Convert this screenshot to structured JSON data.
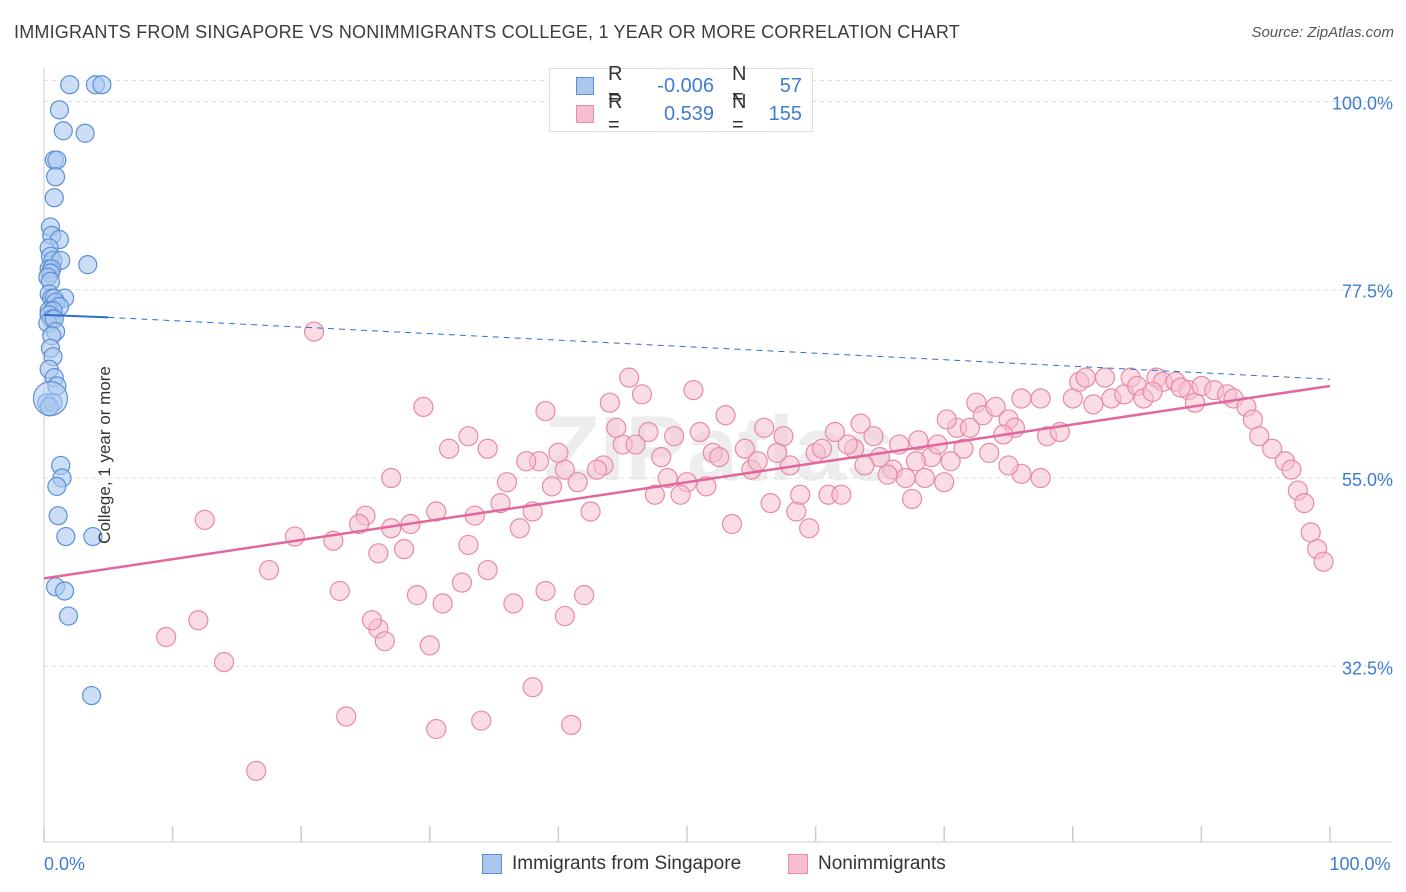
{
  "header": {
    "title": "IMMIGRANTS FROM SINGAPORE VS NONIMMIGRANTS COLLEGE, 1 YEAR OR MORE CORRELATION CHART",
    "source": "Source: ZipAtlas.com"
  },
  "legend": {
    "rows": [
      {
        "r_label": "R =",
        "r_value": "-0.006",
        "n_label": "N =",
        "n_value": "57"
      },
      {
        "r_label": "R =",
        "r_value": "0.539",
        "n_label": "N =",
        "n_value": "155"
      }
    ]
  },
  "bottom_legend": {
    "items": [
      {
        "label": "Immigrants from Singapore"
      },
      {
        "label": "Nonimmigrants"
      }
    ]
  },
  "watermark": "ZIPatlas",
  "colors": {
    "blue_fill": "#aac8ee",
    "blue_stroke": "#5b8fd6",
    "blue_line": "#2f6fcf",
    "pink_fill": "#f6bfd0",
    "pink_stroke": "#e88aa8",
    "pink_line": "#e0689a",
    "tick_label": "#3f7dd1",
    "grid": "#dddddd"
  },
  "chart_data": {
    "type": "scatter",
    "title": "IMMIGRANTS FROM SINGAPORE VS NONIMMIGRANTS COLLEGE, 1 YEAR OR MORE CORRELATION CHART",
    "xlabel": "",
    "ylabel": "College, 1 year or more",
    "xlim": [
      0,
      100
    ],
    "ylim": [
      11.5,
      104
    ],
    "x_tick_labels": [
      {
        "value": 0,
        "label": "0.0%"
      },
      {
        "value": 100,
        "label": "100.0%"
      }
    ],
    "y_ticks": [
      {
        "value": 100,
        "label": "100.0%"
      },
      {
        "value": 77.5,
        "label": "77.5%"
      },
      {
        "value": 55,
        "label": "55.0%"
      },
      {
        "value": 32.5,
        "label": "32.5%"
      }
    ],
    "series": [
      {
        "name": "Immigrants from Singapore",
        "r": -0.006,
        "n": 57,
        "trend": {
          "x0": 0,
          "y0": 74.5,
          "x1": 5,
          "y1": 74.2,
          "dash_x1": 100,
          "dash_y1": 66.8
        },
        "points": [
          [
            2.0,
            102.0
          ],
          [
            4.0,
            102.0
          ],
          [
            4.5,
            102.0
          ],
          [
            1.2,
            99.0
          ],
          [
            1.5,
            96.5
          ],
          [
            3.2,
            96.2
          ],
          [
            0.8,
            93.0
          ],
          [
            1.0,
            93.0
          ],
          [
            0.9,
            91.0
          ],
          [
            0.8,
            88.5
          ],
          [
            0.5,
            85.0
          ],
          [
            0.6,
            84.0
          ],
          [
            1.2,
            83.5
          ],
          [
            0.4,
            82.5
          ],
          [
            0.5,
            81.5
          ],
          [
            0.7,
            81.0
          ],
          [
            1.3,
            81.0
          ],
          [
            3.4,
            80.5
          ],
          [
            0.4,
            80.0
          ],
          [
            0.6,
            80.0
          ],
          [
            0.5,
            79.5
          ],
          [
            0.3,
            79.0
          ],
          [
            0.5,
            78.5
          ],
          [
            0.4,
            77.0
          ],
          [
            0.6,
            76.5
          ],
          [
            0.8,
            76.5
          ],
          [
            1.6,
            76.5
          ],
          [
            0.9,
            76.0
          ],
          [
            1.2,
            75.5
          ],
          [
            0.4,
            75.0
          ],
          [
            0.7,
            75.0
          ],
          [
            0.4,
            74.5
          ],
          [
            0.6,
            74.0
          ],
          [
            0.3,
            73.5
          ],
          [
            0.8,
            74.0
          ],
          [
            0.9,
            72.5
          ],
          [
            0.6,
            72.0
          ],
          [
            0.5,
            70.5
          ],
          [
            0.7,
            69.5
          ],
          [
            0.4,
            68.0
          ],
          [
            0.8,
            67.0
          ],
          [
            1.0,
            66.0
          ],
          [
            0.2,
            64.0
          ],
          [
            0.7,
            64.0
          ],
          [
            0.4,
            63.5
          ],
          [
            1.3,
            56.5
          ],
          [
            1.4,
            55.0
          ],
          [
            1.0,
            54.0
          ],
          [
            1.1,
            50.5
          ],
          [
            1.7,
            48.0
          ],
          [
            3.8,
            48.0
          ],
          [
            0.9,
            42.0
          ],
          [
            1.6,
            41.5
          ],
          [
            1.9,
            38.5
          ],
          [
            3.7,
            29.0
          ]
        ]
      },
      {
        "name": "Nonimmigrants",
        "r": 0.539,
        "n": 155,
        "trend": {
          "x0": 0,
          "y0": 43.0,
          "x1": 100,
          "y1": 66.0
        },
        "points": [
          [
            16.5,
            20.0
          ],
          [
            23.5,
            26.5
          ],
          [
            26.0,
            37.0
          ],
          [
            29.0,
            41.0
          ],
          [
            23.0,
            41.5
          ],
          [
            26.5,
            35.5
          ],
          [
            31.0,
            40.0
          ],
          [
            25.5,
            38.0
          ],
          [
            30.0,
            35.0
          ],
          [
            32.5,
            42.5
          ],
          [
            34.5,
            44.0
          ],
          [
            33.0,
            47.0
          ],
          [
            38.0,
            30.0
          ],
          [
            39.0,
            41.5
          ],
          [
            40.5,
            38.5
          ],
          [
            42.0,
            41.0
          ],
          [
            36.5,
            40.0
          ],
          [
            41.0,
            25.5
          ],
          [
            30.5,
            25.0
          ],
          [
            34.0,
            26.0
          ],
          [
            12.0,
            38.0
          ],
          [
            12.5,
            50.0
          ],
          [
            21.0,
            72.5
          ],
          [
            25.0,
            50.5
          ],
          [
            27.0,
            55.0
          ],
          [
            28.5,
            49.5
          ],
          [
            30.5,
            51.0
          ],
          [
            33.0,
            60.0
          ],
          [
            34.5,
            58.5
          ],
          [
            36.0,
            54.5
          ],
          [
            37.0,
            49.0
          ],
          [
            38.0,
            51.0
          ],
          [
            38.5,
            57.0
          ],
          [
            39.5,
            54.0
          ],
          [
            40.5,
            56.0
          ],
          [
            41.5,
            54.5
          ],
          [
            42.5,
            51.0
          ],
          [
            43.5,
            56.5
          ],
          [
            44.0,
            64.0
          ],
          [
            45.0,
            59.0
          ],
          [
            45.5,
            67.0
          ],
          [
            46.5,
            65.0
          ],
          [
            47.5,
            53.0
          ],
          [
            48.0,
            57.5
          ],
          [
            49.0,
            60.0
          ],
          [
            50.5,
            65.5
          ],
          [
            51.5,
            54.0
          ],
          [
            52.0,
            58.0
          ],
          [
            53.0,
            62.5
          ],
          [
            54.5,
            58.5
          ],
          [
            55.0,
            56.0
          ],
          [
            56.0,
            61.0
          ],
          [
            57.5,
            60.0
          ],
          [
            58.0,
            56.5
          ],
          [
            58.5,
            51.0
          ],
          [
            59.5,
            49.0
          ],
          [
            60.0,
            58.0
          ],
          [
            61.0,
            53.0
          ],
          [
            62.0,
            53.0
          ],
          [
            63.0,
            58.5
          ],
          [
            63.5,
            61.5
          ],
          [
            64.5,
            60.0
          ],
          [
            65.0,
            57.5
          ],
          [
            66.0,
            56.0
          ],
          [
            66.5,
            59.0
          ],
          [
            67.0,
            55.0
          ],
          [
            67.5,
            52.5
          ],
          [
            68.5,
            55.0
          ],
          [
            69.0,
            57.5
          ],
          [
            70.0,
            54.5
          ],
          [
            71.0,
            61.0
          ],
          [
            72.0,
            61.0
          ],
          [
            72.5,
            64.0
          ],
          [
            73.0,
            62.5
          ],
          [
            74.0,
            63.5
          ],
          [
            75.0,
            62.0
          ],
          [
            75.5,
            61.0
          ],
          [
            76.0,
            64.5
          ],
          [
            77.5,
            64.5
          ],
          [
            78.0,
            60.0
          ],
          [
            79.0,
            60.5
          ],
          [
            80.0,
            64.5
          ],
          [
            80.5,
            66.5
          ],
          [
            81.0,
            67.0
          ],
          [
            82.5,
            67.0
          ],
          [
            83.0,
            64.5
          ],
          [
            84.0,
            65.0
          ],
          [
            84.5,
            67.0
          ],
          [
            85.0,
            66.0
          ],
          [
            85.5,
            64.5
          ],
          [
            86.5,
            67.0
          ],
          [
            87.0,
            66.5
          ],
          [
            88.0,
            66.5
          ],
          [
            89.0,
            65.5
          ],
          [
            89.5,
            64.0
          ],
          [
            90.0,
            66.0
          ],
          [
            91.0,
            65.5
          ],
          [
            92.0,
            65.0
          ],
          [
            92.5,
            64.5
          ],
          [
            93.5,
            63.5
          ],
          [
            94.0,
            62.0
          ],
          [
            94.5,
            60.0
          ],
          [
            95.5,
            58.5
          ],
          [
            96.5,
            57.0
          ],
          [
            97.0,
            56.0
          ],
          [
            97.5,
            53.5
          ],
          [
            98.0,
            52.0
          ],
          [
            98.5,
            48.5
          ],
          [
            99.0,
            46.5
          ],
          [
            99.5,
            45.0
          ],
          [
            77.5,
            55.0
          ],
          [
            76.0,
            55.5
          ],
          [
            75.0,
            56.5
          ],
          [
            73.5,
            58.0
          ],
          [
            71.5,
            58.5
          ],
          [
            70.5,
            57.0
          ],
          [
            69.5,
            59.0
          ],
          [
            68.0,
            59.5
          ],
          [
            62.5,
            59.0
          ],
          [
            61.5,
            60.5
          ],
          [
            60.5,
            58.5
          ],
          [
            57.0,
            58.0
          ],
          [
            55.5,
            57.0
          ],
          [
            52.5,
            57.5
          ],
          [
            50.0,
            54.5
          ],
          [
            49.5,
            53.0
          ],
          [
            48.5,
            55.0
          ],
          [
            46.0,
            59.0
          ],
          [
            44.5,
            61.0
          ],
          [
            43.0,
            56.0
          ],
          [
            40.0,
            58.0
          ],
          [
            39.0,
            63.0
          ],
          [
            37.5,
            57.0
          ],
          [
            35.5,
            52.0
          ],
          [
            33.5,
            50.5
          ],
          [
            31.5,
            58.5
          ],
          [
            29.5,
            63.5
          ],
          [
            27.0,
            49.0
          ],
          [
            24.5,
            49.5
          ],
          [
            22.5,
            47.5
          ],
          [
            19.5,
            48.0
          ],
          [
            17.5,
            44.0
          ],
          [
            14.0,
            33.0
          ],
          [
            9.5,
            36.0
          ],
          [
            26.0,
            46.0
          ],
          [
            28.0,
            46.5
          ],
          [
            47.0,
            60.5
          ],
          [
            51.0,
            60.5
          ],
          [
            53.5,
            49.5
          ],
          [
            56.5,
            52.0
          ],
          [
            58.8,
            53.0
          ],
          [
            63.8,
            56.5
          ],
          [
            65.6,
            55.4
          ],
          [
            67.8,
            57.0
          ],
          [
            70.2,
            62.0
          ],
          [
            74.6,
            60.2
          ],
          [
            81.6,
            63.8
          ],
          [
            86.2,
            65.3
          ],
          [
            88.4,
            65.8
          ]
        ]
      }
    ]
  }
}
